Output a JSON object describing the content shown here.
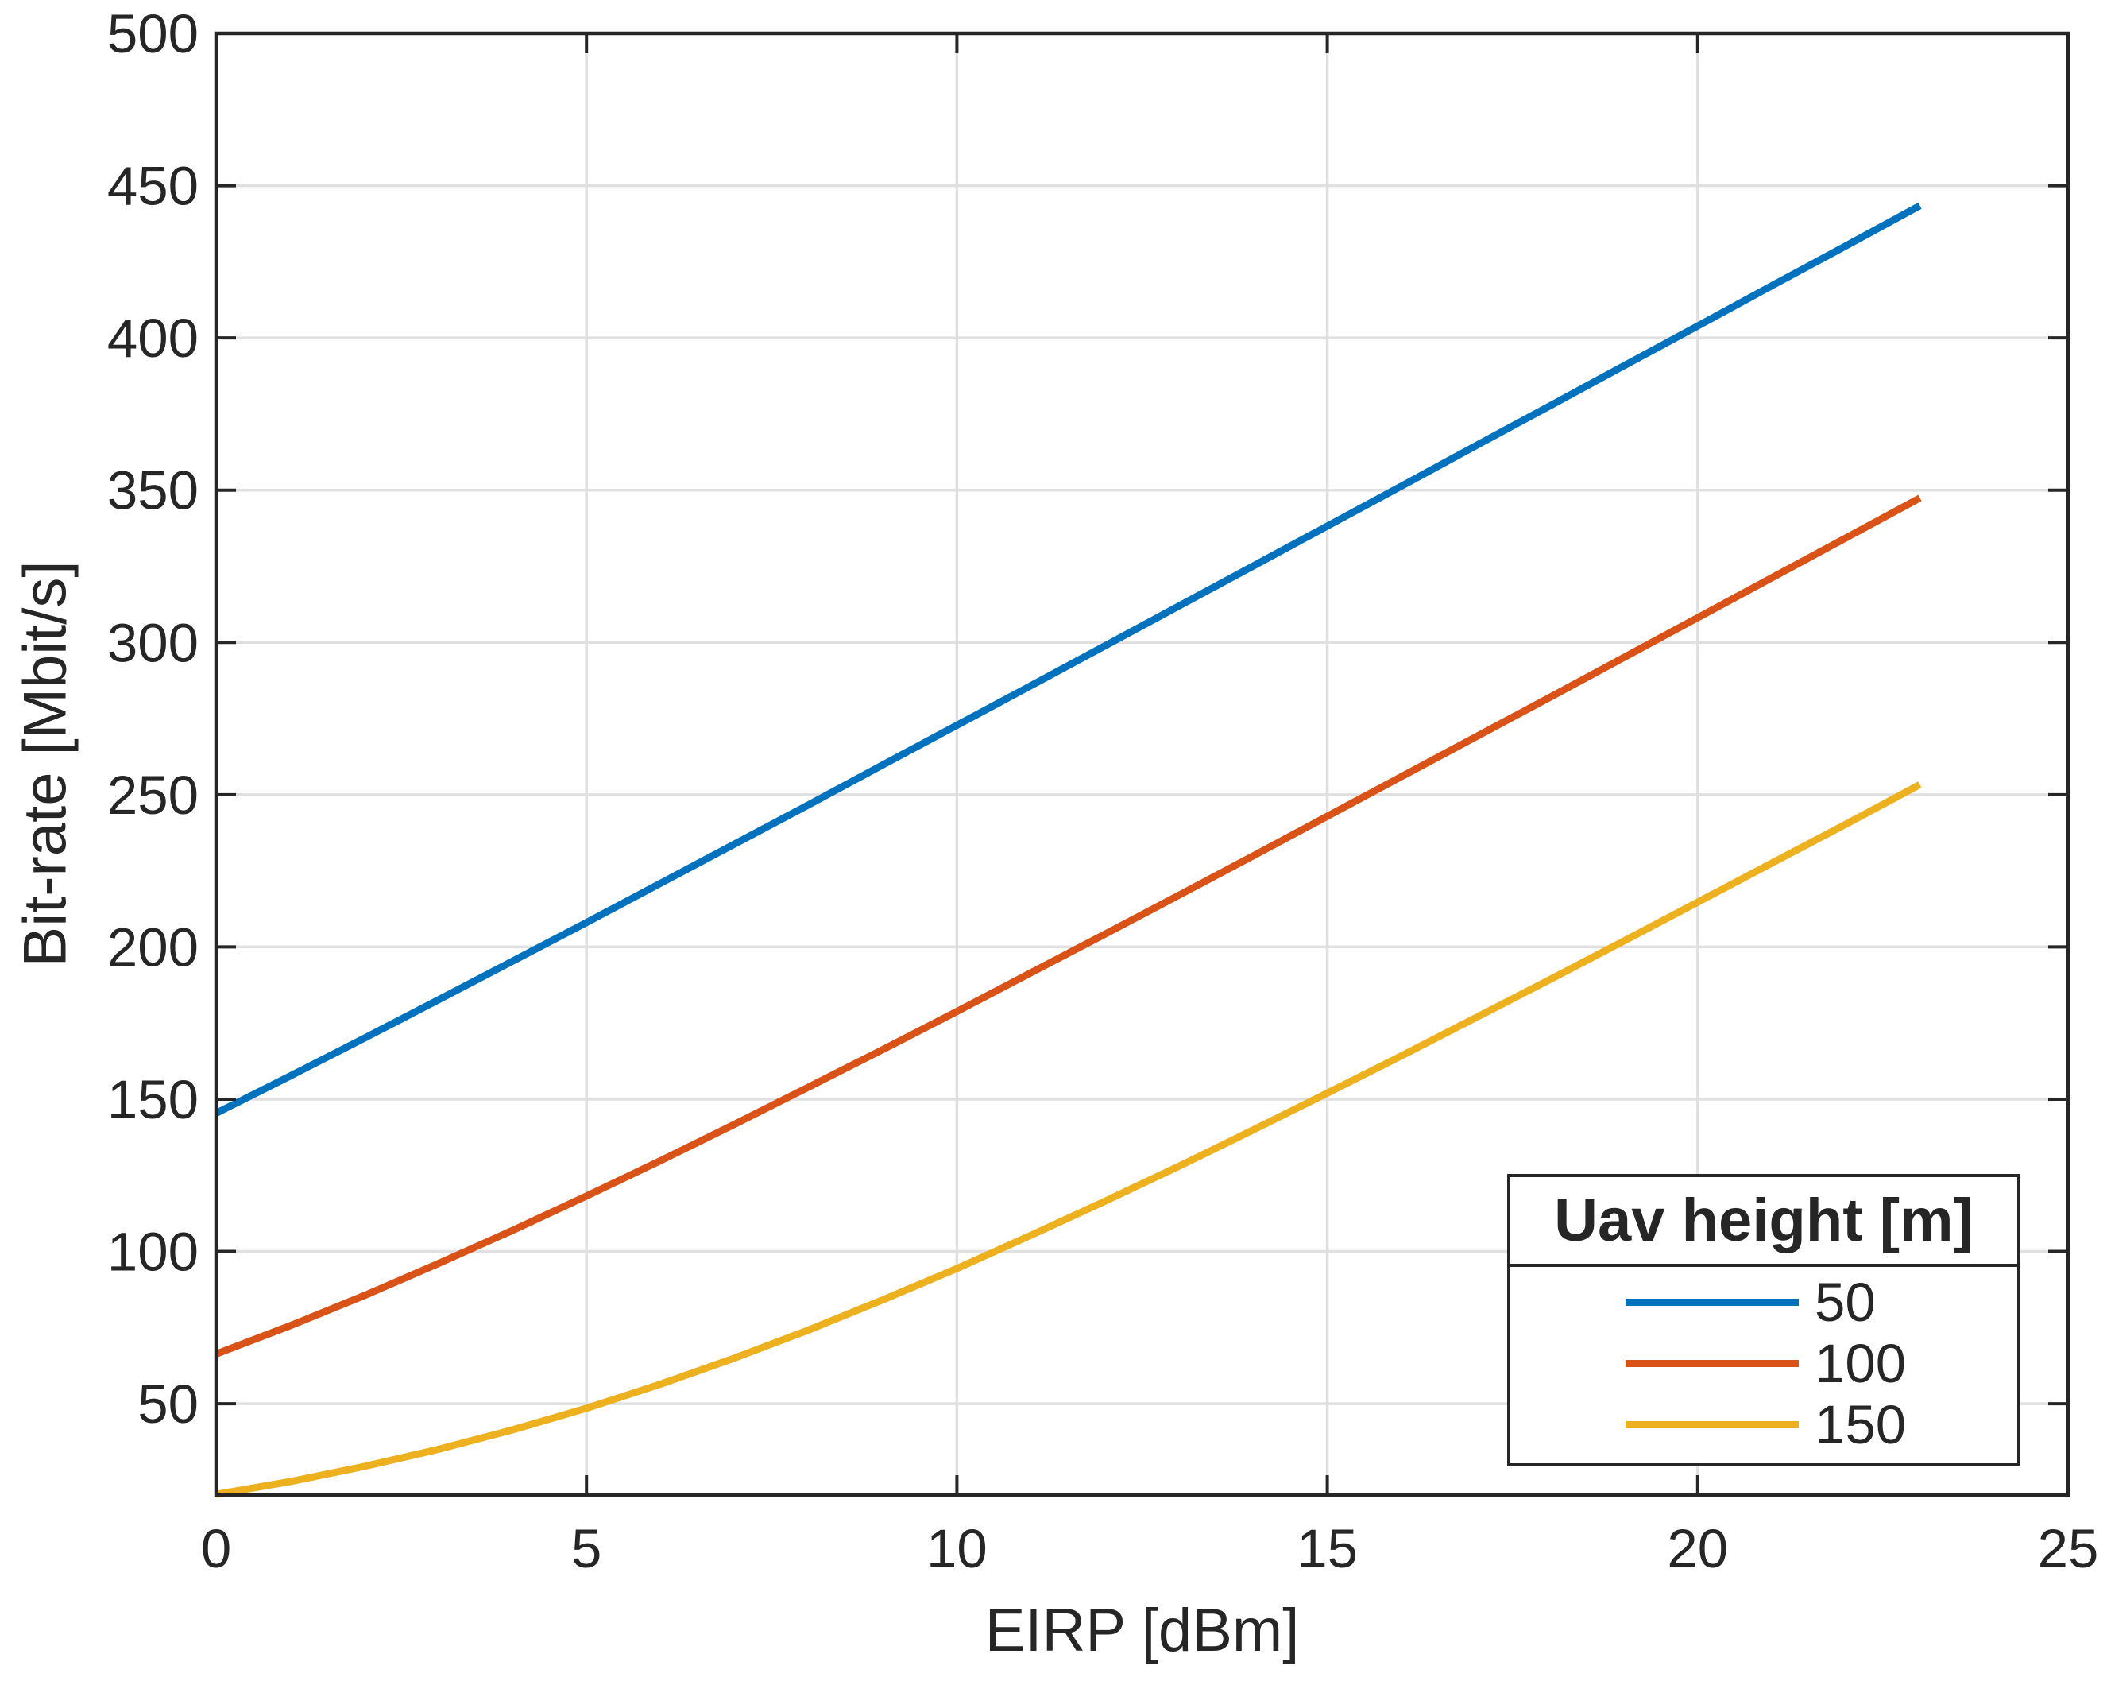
{
  "chart_data": {
    "type": "line",
    "title": "",
    "xlabel": "EIRP [dBm]",
    "ylabel": "Bit-rate [Mbit/s]",
    "xlim": [
      0,
      25
    ],
    "ylim": [
      20,
      500
    ],
    "xticks": [
      0,
      5,
      10,
      15,
      20,
      25
    ],
    "yticks": [
      50,
      100,
      150,
      200,
      250,
      300,
      350,
      400,
      450,
      500
    ],
    "grid": true,
    "legend": {
      "title": "Uav height [m]",
      "position": "south-east",
      "entries": [
        "50",
        "100",
        "150"
      ]
    },
    "x": [
      0,
      1,
      2,
      3,
      4,
      5,
      6,
      7,
      8,
      9,
      10,
      11,
      12,
      13,
      14,
      15,
      16,
      17,
      18,
      19,
      20,
      21,
      22,
      23
    ],
    "series": [
      {
        "name": "50",
        "color": "#0072BD",
        "values": [
          145.4,
          157.6,
          170.0,
          182.6,
          195.3,
          208.0,
          220.9,
          233.8,
          246.7,
          259.8,
          272.8,
          285.8,
          298.9,
          312.0,
          325.1,
          338.2,
          351.3,
          364.5,
          377.6,
          390.8,
          403.9,
          417.1,
          430.2,
          443.4
        ]
      },
      {
        "name": "100",
        "color": "#D95319",
        "values": [
          66.3,
          75.6,
          85.5,
          96.0,
          106.9,
          118.2,
          129.8,
          141.8,
          154.0,
          166.3,
          178.8,
          191.5,
          204.2,
          217.0,
          229.9,
          242.9,
          255.9,
          268.9,
          281.9,
          295.0,
          308.1,
          321.2,
          334.3,
          347.4
        ]
      },
      {
        "name": "150",
        "color": "#EDB120",
        "values": [
          20.2,
          24.4,
          29.4,
          35.0,
          41.4,
          48.5,
          56.4,
          65.0,
          74.2,
          84.1,
          94.4,
          105.3,
          116.5,
          128.0,
          139.9,
          152.0,
          164.2,
          176.7,
          189.2,
          201.9,
          214.7,
          227.5,
          240.3,
          253.3
        ]
      }
    ]
  },
  "style": {
    "grid_color": "#E0E0E0",
    "axis_color": "#262626",
    "text_color": "#262626",
    "background": "#ffffff"
  }
}
